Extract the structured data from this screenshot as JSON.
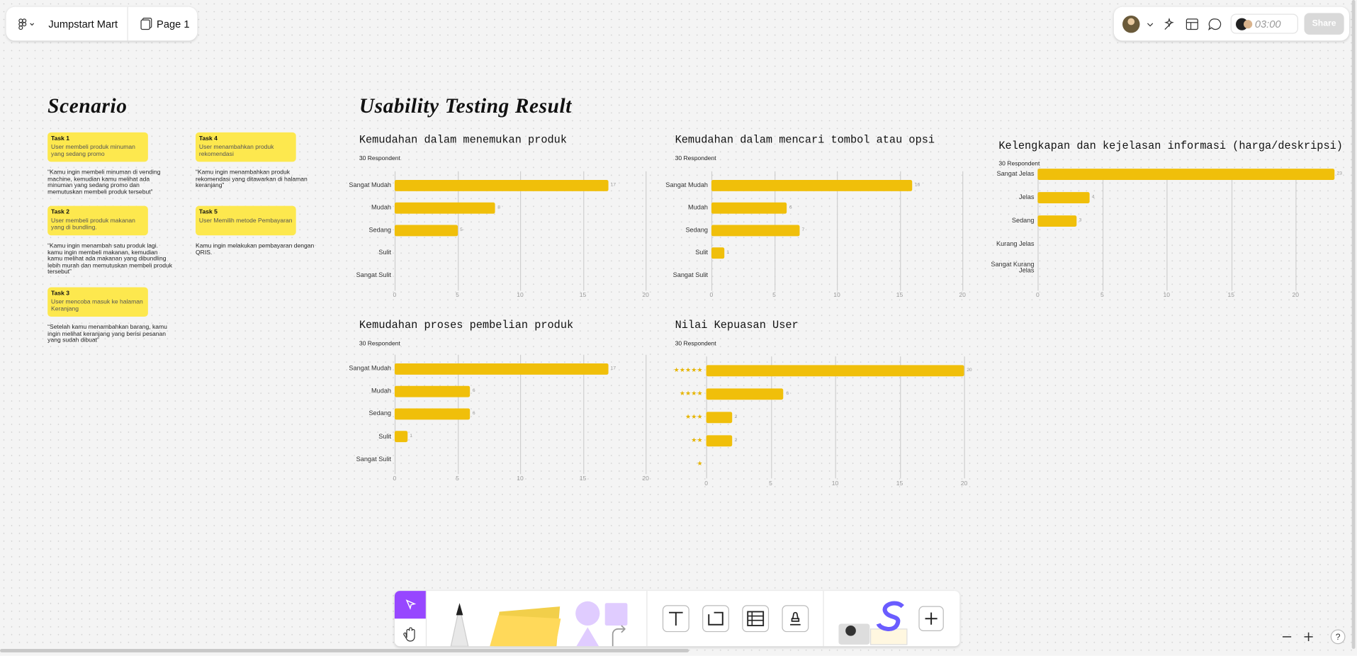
{
  "header": {
    "file_name": "Jumpstart Mart",
    "page": "Page 1",
    "timer": "03:00",
    "share": "Share"
  },
  "scenario": {
    "title": "Scenario",
    "tasks": [
      {
        "title": "Task 1",
        "desc": "User membeli produk minuman yang sedang promo",
        "quote": "“Kamu ingin membeli minuman di vending machine, kemudian kamu melihat ada minuman yang sedang promo dan memutuskan membeli produk tersebut”"
      },
      {
        "title": "Task 2",
        "desc": "User membeli produk makanan yang di bundling.",
        "quote": "“Kamu ingin menambah satu produk lagi. kamu ingin membeli makanan, kemudian kamu melihat ada makanan yang dibundling lebih murah dan memutuskan membeli produk tersebut”"
      },
      {
        "title": "Task 3",
        "desc": "User mencoba masuk ke halaman Keranjang",
        "quote": "“Setelah kamu menambahkan barang, kamu ingin melihat keranjang yang berisi pesanan yang sudah dibuat”"
      },
      {
        "title": "Task 4",
        "desc": "User menambahkan produk rekomendasi",
        "quote": "“Kamu ingin menambahkan produk rekomendasi yang ditawarkan di halaman keranjang”"
      },
      {
        "title": "Task 5",
        "desc": "User Memilih metode Pembayaran",
        "quote": "Kamu ingin melakukan pembayaran dengan QRIS."
      }
    ]
  },
  "results_title": "Usability Testing Result",
  "chart_data": [
    {
      "type": "bar",
      "horizontal": true,
      "title": "Kemudahan dalam menemukan produk",
      "subtitle": "30 Respondent",
      "categories": [
        "Sangat Mudah",
        "Mudah",
        "Sedang",
        "Sulit",
        "Sangat Sulit"
      ],
      "values": [
        17,
        8,
        5,
        0,
        0
      ],
      "color": "#f0bf0a",
      "label_color": "#333333",
      "xlim": [
        0,
        20
      ],
      "xticks": [
        0,
        5,
        10,
        15,
        20
      ],
      "grid": true
    },
    {
      "type": "bar",
      "horizontal": true,
      "title": "Kemudahan dalam mencari tombol atau opsi",
      "subtitle": "30 Respondent",
      "categories": [
        "Sangat Mudah",
        "Mudah",
        "Sedang",
        "Sulit",
        "Sangat Sulit"
      ],
      "values": [
        16,
        6,
        7,
        1,
        0
      ],
      "color": "#f0bf0a",
      "label_color": "#333333",
      "xlim": [
        0,
        20
      ],
      "xticks": [
        0,
        5,
        10,
        15,
        20
      ],
      "grid": true
    },
    {
      "type": "bar",
      "horizontal": true,
      "title": "Kelengkapan dan kejelasan informasi (harga/deskripsi)",
      "subtitle": "30 Respondent",
      "categories": [
        "Sangat Jelas",
        "Jelas",
        "Sedang",
        "Kurang Jelas",
        "Sangat Kurang Jelas"
      ],
      "values": [
        23,
        4,
        3,
        0,
        0
      ],
      "color": "#f0bf0a",
      "label_color": "#333333",
      "xlim": [
        0,
        23
      ],
      "xticks": [
        0,
        5,
        10,
        15,
        20
      ],
      "grid": true
    },
    {
      "type": "bar",
      "horizontal": true,
      "title": "Kemudahan proses pembelian produk",
      "subtitle": "30 Respondent",
      "categories": [
        "Sangat Mudah",
        "Mudah",
        "Sedang",
        "Sulit",
        "Sangat Sulit"
      ],
      "values": [
        17,
        6,
        6,
        1,
        0
      ],
      "color": "#f0bf0a",
      "label_color": "#333333",
      "xlim": [
        0,
        20
      ],
      "xticks": [
        0,
        5,
        10,
        15,
        20
      ],
      "grid": true
    },
    {
      "type": "bar",
      "horizontal": true,
      "title": "Nilai Kepuasan User",
      "subtitle": "30 Respondent",
      "categories": [
        "★★★★★",
        "★★★★",
        "★★★",
        "★★",
        "★"
      ],
      "values": [
        20,
        6,
        2,
        2,
        0
      ],
      "color": "#f0bf0a",
      "label_color": "#e6b400",
      "xlim": [
        0,
        20
      ],
      "xticks": [
        0,
        5,
        10,
        15,
        20
      ],
      "grid": true
    }
  ]
}
